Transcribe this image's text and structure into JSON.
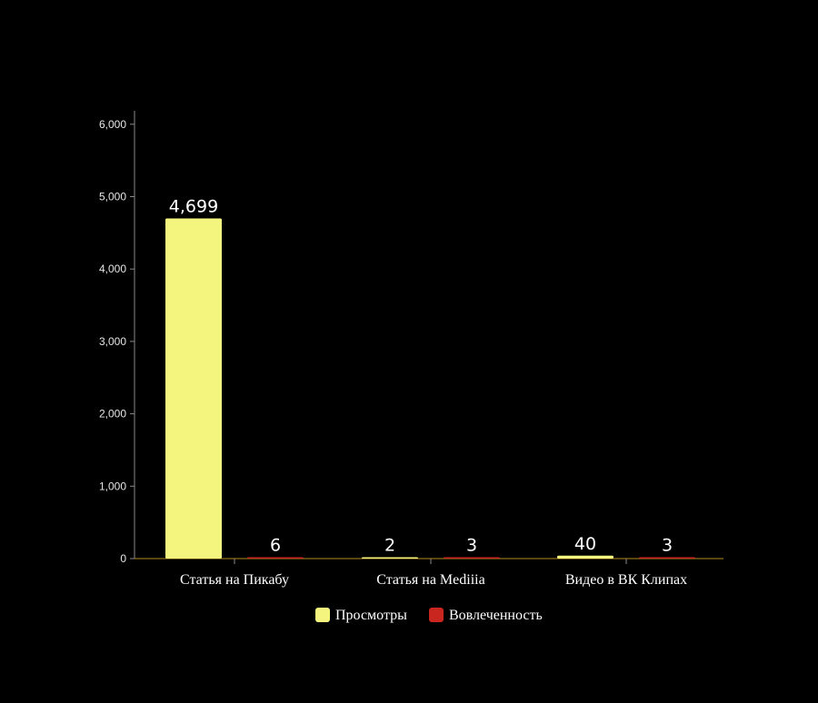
{
  "chart_data": {
    "type": "bar",
    "categories": [
      "Статья на Пикабу",
      "Статья на Mediiia",
      "Видео в ВК Клипах"
    ],
    "series": [
      {
        "name": "Просмотры",
        "values": [
          4699,
          2,
          40
        ],
        "color": "#f3f57f"
      },
      {
        "name": "Вовлеченность",
        "values": [
          6,
          3,
          3
        ],
        "color": "#c8261e"
      }
    ],
    "data_labels": [
      [
        "4,699",
        "2",
        "40"
      ],
      [
        "6",
        "3",
        "3"
      ]
    ],
    "yticks": [
      0,
      1000,
      2000,
      3000,
      4000,
      5000,
      6000
    ],
    "ytick_labels": [
      "0",
      "1,000",
      "2,000",
      "3,000",
      "4,000",
      "5,000",
      "6,000"
    ],
    "ylim": [
      0,
      6200
    ],
    "xlabel": "",
    "ylabel": "",
    "grid": false,
    "legend_position": "bottom-center",
    "axis_color": "#b58a1e",
    "background": "#000000"
  }
}
